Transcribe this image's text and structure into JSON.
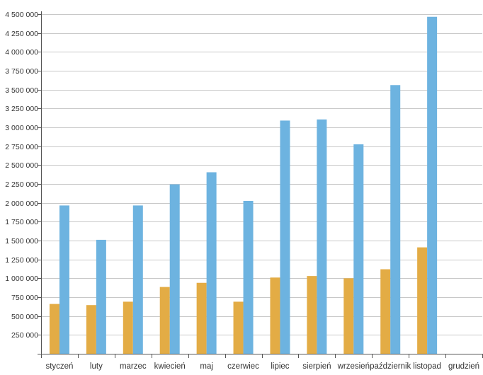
{
  "chart_data": {
    "type": "bar",
    "categories": [
      "styczeń",
      "luty",
      "marzec",
      "kwiecień",
      "maj",
      "czerwiec",
      "lipiec",
      "sierpień",
      "wrzesień",
      "październik",
      "listopad",
      "grudzień"
    ],
    "series": [
      {
        "color": "#E3AC45",
        "values": [
          660000,
          645000,
          690000,
          885000,
          940000,
          690000,
          1010000,
          1030000,
          1000000,
          1120000,
          1410000,
          0
        ]
      },
      {
        "color": "#6DB3E0",
        "values": [
          1965000,
          1510000,
          1965000,
          2245000,
          2405000,
          2025000,
          3090000,
          3105000,
          2775000,
          3560000,
          4465000,
          0
        ]
      }
    ],
    "yticks": [
      "",
      "250 000",
      "500 000",
      "750 000",
      "1 000 000",
      "1 250 000",
      "1 500 000",
      "1 750 000",
      "2 000 000",
      "2 250 000",
      "2 500 000",
      "2 750 000",
      "3 000 000",
      "3 250 000",
      "3 500 000",
      "3 750 000",
      "4 000 000",
      "4 250 000",
      "4 500 000"
    ],
    "ylim": [
      0,
      4500000
    ],
    "grid": true,
    "title": "",
    "xlabel": "",
    "ylabel": ""
  }
}
